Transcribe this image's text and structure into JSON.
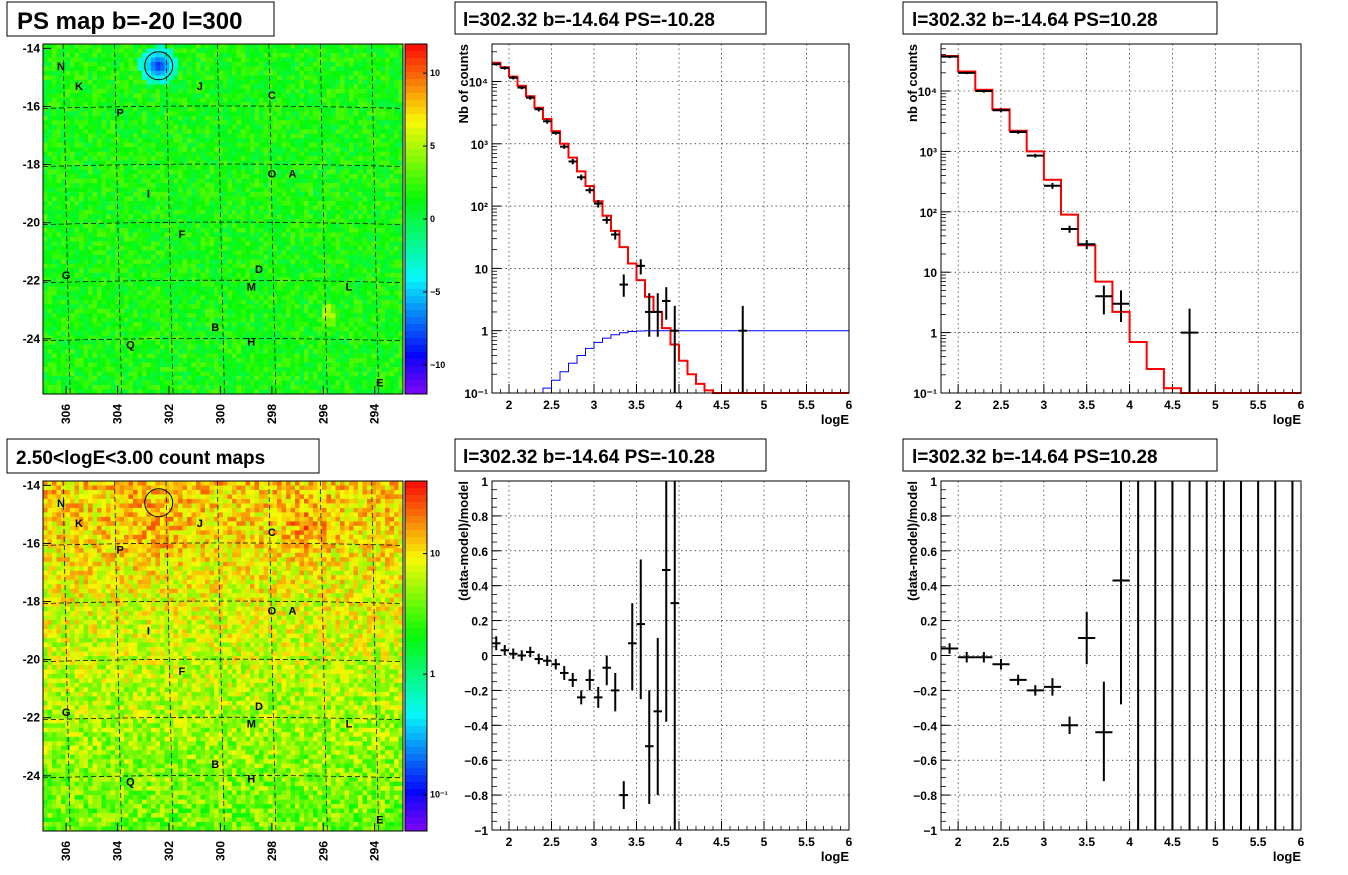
{
  "colors": {
    "model_line": "#ff0000",
    "data_marker": "#000000",
    "blue_line": "#0000ff"
  },
  "maps": [
    {
      "title": "PS map b=-20 l=300",
      "palette": "ps",
      "colorbar": {
        "scale": "linear",
        "range": [
          -12,
          12
        ],
        "ticks": [
          "10",
          "5",
          "0",
          "−5",
          "−10"
        ],
        "tick_values": [
          10,
          5,
          0,
          -5,
          -10
        ]
      },
      "xticks": [
        "306",
        "304",
        "302",
        "300",
        "298",
        "296",
        "294"
      ],
      "yticks": [
        "-14",
        "-16",
        "-18",
        "-20",
        "-22",
        "-24"
      ],
      "circle": "source-circle"
    },
    {
      "title": "2.50<logE<3.00 count maps",
      "palette": "counts",
      "colorbar": {
        "scale": "log",
        "range": [
          0.05,
          40
        ],
        "ticks": [
          "10",
          "1",
          "10⁻¹"
        ],
        "tick_values": [
          10,
          1,
          0.1
        ]
      },
      "xticks": [
        "306",
        "304",
        "302",
        "300",
        "298",
        "296",
        "294"
      ],
      "yticks": [
        "-14",
        "-16",
        "-18",
        "-20",
        "-22",
        "-24"
      ],
      "circle": "source-circle"
    }
  ],
  "map_labels": [
    {
      "t": "N",
      "l": 306.2,
      "b": -14.6
    },
    {
      "t": "K",
      "l": 305.5,
      "b": -15.3
    },
    {
      "t": "J",
      "l": 300.8,
      "b": -15.3
    },
    {
      "t": "C",
      "l": 298.0,
      "b": -15.6
    },
    {
      "t": "P",
      "l": 303.9,
      "b": -16.2
    },
    {
      "t": "O",
      "l": 298.0,
      "b": -18.3
    },
    {
      "t": "A",
      "l": 297.2,
      "b": -18.3
    },
    {
      "t": "I",
      "l": 302.8,
      "b": -19.0
    },
    {
      "t": "F",
      "l": 301.5,
      "b": -20.4
    },
    {
      "t": "G",
      "l": 306.0,
      "b": -21.8
    },
    {
      "t": "D",
      "l": 298.5,
      "b": -21.6
    },
    {
      "t": "M",
      "l": 298.8,
      "b": -22.2
    },
    {
      "t": "L",
      "l": 295.0,
      "b": -22.2
    },
    {
      "t": "B",
      "l": 300.2,
      "b": -23.6
    },
    {
      "t": "H",
      "l": 298.8,
      "b": -24.1
    },
    {
      "t": "Q",
      "l": 303.5,
      "b": -24.2
    },
    {
      "t": "E",
      "l": 293.8,
      "b": -25.5
    }
  ],
  "source_circle": {
    "l": 302.4,
    "b": -14.6
  },
  "charts": [
    {
      "id": "spectrum-neg",
      "title": "l=302.32 b=-14.64 PS=-10.28",
      "type": "line",
      "yscale": "log",
      "ylabel": "Nb of counts",
      "xlabel": "logE",
      "xlim": [
        1.8,
        6
      ],
      "ylim": [
        0.1,
        40000
      ],
      "xticks": [
        "2",
        "2.5",
        "3",
        "3.5",
        "4",
        "4.5",
        "5",
        "5.5",
        "6"
      ],
      "xtick_values": [
        2,
        2.5,
        3,
        3.5,
        4,
        4.5,
        5,
        5.5,
        6
      ],
      "yticks": [
        "10⁻¹",
        "1",
        "10",
        "10²",
        "10³",
        "10⁴"
      ],
      "ytick_values": [
        0.1,
        1,
        10,
        100,
        1000,
        10000
      ],
      "step_edges": [
        1.8,
        1.9,
        2.0,
        2.1,
        2.2,
        2.3,
        2.4,
        2.5,
        2.6,
        2.7,
        2.8,
        2.9,
        3.0,
        3.1,
        3.2,
        3.3,
        3.4,
        3.5,
        3.6,
        3.7,
        3.8,
        3.9,
        4.0,
        4.1,
        4.2,
        4.3,
        4.4,
        4.5,
        4.6,
        4.7,
        4.8,
        4.9,
        5.0,
        6.0
      ],
      "model": [
        20000,
        17000,
        12000,
        8500,
        5800,
        3800,
        2500,
        1600,
        1000,
        600,
        360,
        210,
        120,
        70,
        40,
        22,
        12,
        6.5,
        3.5,
        2.0,
        1.1,
        0.6,
        0.33,
        0.2,
        0.14,
        0.11,
        0.1,
        0.1,
        0.1,
        0.1,
        0.1,
        0.1,
        0.1
      ],
      "blue_edges": [
        1.8,
        2.4,
        2.5,
        2.6,
        2.7,
        2.8,
        2.9,
        3.0,
        3.1,
        3.2,
        3.3,
        3.4,
        3.5,
        3.6,
        3.7,
        6.0
      ],
      "blue": [
        0.1,
        0.12,
        0.16,
        0.22,
        0.3,
        0.4,
        0.52,
        0.65,
        0.76,
        0.86,
        0.93,
        0.97,
        0.99,
        1.0,
        1.0
      ],
      "points": [
        {
          "x": 1.85,
          "y": 19000,
          "lo": 18000,
          "hi": 20000
        },
        {
          "x": 1.95,
          "y": 16500,
          "lo": 15500,
          "hi": 17500
        },
        {
          "x": 2.05,
          "y": 11500,
          "lo": 10800,
          "hi": 12300
        },
        {
          "x": 2.15,
          "y": 8000,
          "lo": 7500,
          "hi": 8500
        },
        {
          "x": 2.25,
          "y": 5500,
          "lo": 5100,
          "hi": 5900
        },
        {
          "x": 2.35,
          "y": 3600,
          "lo": 3300,
          "hi": 3900
        },
        {
          "x": 2.45,
          "y": 2300,
          "lo": 2100,
          "hi": 2500
        },
        {
          "x": 2.55,
          "y": 1500,
          "lo": 1400,
          "hi": 1600
        },
        {
          "x": 2.65,
          "y": 900,
          "lo": 830,
          "hi": 970
        },
        {
          "x": 2.75,
          "y": 520,
          "lo": 470,
          "hi": 570
        },
        {
          "x": 2.85,
          "y": 290,
          "lo": 260,
          "hi": 320
        },
        {
          "x": 2.95,
          "y": 180,
          "lo": 160,
          "hi": 200
        },
        {
          "x": 3.05,
          "y": 110,
          "lo": 95,
          "hi": 125
        },
        {
          "x": 3.15,
          "y": 60,
          "lo": 52,
          "hi": 68
        },
        {
          "x": 3.25,
          "y": 35,
          "lo": 29,
          "hi": 41
        },
        {
          "x": 3.35,
          "y": 5.5,
          "lo": 3.5,
          "hi": 8
        },
        {
          "x": 3.55,
          "y": 11,
          "lo": 8,
          "hi": 14
        },
        {
          "x": 3.65,
          "y": 2,
          "lo": 0.8,
          "hi": 4
        },
        {
          "x": 3.75,
          "y": 2,
          "lo": 0.8,
          "hi": 4
        },
        {
          "x": 3.85,
          "y": 3,
          "lo": 1.5,
          "hi": 5
        },
        {
          "x": 3.95,
          "y": 1,
          "lo": 0.1,
          "hi": 2.5
        },
        {
          "x": 4.75,
          "y": 1,
          "lo": 0.1,
          "hi": 2.5
        }
      ],
      "xerr": 0.05
    },
    {
      "id": "spectrum-pos",
      "title": "l=302.32 b=-14.64 PS=10.28",
      "type": "line",
      "yscale": "log",
      "ylabel": "nb of counts",
      "xlabel": "logE",
      "xlim": [
        1.8,
        6
      ],
      "ylim": [
        0.1,
        60000
      ],
      "xticks": [
        "2",
        "2.5",
        "3",
        "3.5",
        "4",
        "4.5",
        "5",
        "5.5",
        "6"
      ],
      "xtick_values": [
        2,
        2.5,
        3,
        3.5,
        4,
        4.5,
        5,
        5.5,
        6
      ],
      "yticks": [
        "10⁻¹",
        "1",
        "10",
        "10²",
        "10³",
        "10⁴"
      ],
      "ytick_values": [
        0.1,
        1,
        10,
        100,
        1000,
        10000
      ],
      "step_edges": [
        1.8,
        2.0,
        2.2,
        2.4,
        2.6,
        2.8,
        3.0,
        3.2,
        3.4,
        3.6,
        3.8,
        4.0,
        4.2,
        4.4,
        4.6,
        4.8,
        6.0
      ],
      "model": [
        38000,
        21000,
        10500,
        5000,
        2200,
        1000,
        340,
        90,
        28,
        7,
        2.2,
        0.7,
        0.25,
        0.12,
        0.1,
        0.1
      ],
      "points": [
        {
          "x": 1.9,
          "y": 37000,
          "lo": 35000,
          "hi": 39000
        },
        {
          "x": 2.1,
          "y": 20000,
          "lo": 19000,
          "hi": 21000
        },
        {
          "x": 2.3,
          "y": 10000,
          "lo": 9400,
          "hi": 10600
        },
        {
          "x": 2.5,
          "y": 4800,
          "lo": 4500,
          "hi": 5100
        },
        {
          "x": 2.7,
          "y": 2100,
          "lo": 1950,
          "hi": 2250
        },
        {
          "x": 2.9,
          "y": 850,
          "lo": 790,
          "hi": 910
        },
        {
          "x": 3.1,
          "y": 270,
          "lo": 240,
          "hi": 300
        },
        {
          "x": 3.3,
          "y": 52,
          "lo": 45,
          "hi": 59
        },
        {
          "x": 3.5,
          "y": 29,
          "lo": 24,
          "hi": 34
        },
        {
          "x": 3.7,
          "y": 4,
          "lo": 2,
          "hi": 6
        },
        {
          "x": 3.9,
          "y": 3,
          "lo": 1.5,
          "hi": 5
        },
        {
          "x": 4.7,
          "y": 1,
          "lo": 0.1,
          "hi": 2.5
        }
      ],
      "xerr": 0.1
    },
    {
      "id": "residual-neg",
      "title": "l=302.32 b=-14.64 PS=-10.28",
      "type": "scatter",
      "yscale": "linear",
      "ylabel": "(data-model)/model",
      "xlabel": "logE",
      "xlim": [
        1.8,
        6
      ],
      "ylim": [
        -1,
        1
      ],
      "xticks": [
        "2",
        "2.5",
        "3",
        "3.5",
        "4",
        "4.5",
        "5",
        "5.5",
        "6"
      ],
      "xtick_values": [
        2,
        2.5,
        3,
        3.5,
        4,
        4.5,
        5,
        5.5,
        6
      ],
      "yticks": [
        "−1",
        "−0.8",
        "−0.6",
        "−0.4",
        "−0.2",
        "0",
        "0.2",
        "0.4",
        "0.6",
        "0.8",
        "1"
      ],
      "ytick_values": [
        -1,
        -0.8,
        -0.6,
        -0.4,
        -0.2,
        0,
        0.2,
        0.4,
        0.6,
        0.8,
        1
      ],
      "points": [
        {
          "x": 1.85,
          "y": 0.07,
          "lo": 0.03,
          "hi": 0.11
        },
        {
          "x": 1.95,
          "y": 0.03,
          "lo": 0.0,
          "hi": 0.06
        },
        {
          "x": 2.05,
          "y": 0.01,
          "lo": -0.02,
          "hi": 0.04
        },
        {
          "x": 2.15,
          "y": 0.0,
          "lo": -0.03,
          "hi": 0.03
        },
        {
          "x": 2.25,
          "y": 0.02,
          "lo": -0.01,
          "hi": 0.05
        },
        {
          "x": 2.35,
          "y": -0.02,
          "lo": -0.05,
          "hi": 0.01
        },
        {
          "x": 2.45,
          "y": -0.03,
          "lo": -0.06,
          "hi": 0.0
        },
        {
          "x": 2.55,
          "y": -0.05,
          "lo": -0.08,
          "hi": -0.02
        },
        {
          "x": 2.65,
          "y": -0.1,
          "lo": -0.14,
          "hi": -0.06
        },
        {
          "x": 2.75,
          "y": -0.14,
          "lo": -0.18,
          "hi": -0.1
        },
        {
          "x": 2.85,
          "y": -0.24,
          "lo": -0.28,
          "hi": -0.2
        },
        {
          "x": 2.95,
          "y": -0.14,
          "lo": -0.2,
          "hi": -0.08
        },
        {
          "x": 3.05,
          "y": -0.24,
          "lo": -0.3,
          "hi": -0.18
        },
        {
          "x": 3.15,
          "y": -0.07,
          "lo": -0.17,
          "hi": 0.0
        },
        {
          "x": 3.25,
          "y": -0.2,
          "lo": -0.32,
          "hi": -0.1
        },
        {
          "x": 3.35,
          "y": -0.8,
          "lo": -0.88,
          "hi": -0.72
        },
        {
          "x": 3.45,
          "y": 0.07,
          "lo": -0.2,
          "hi": 0.3
        },
        {
          "x": 3.55,
          "y": 0.18,
          "lo": -0.25,
          "hi": 0.55
        },
        {
          "x": 3.65,
          "y": -0.52,
          "lo": -0.85,
          "hi": -0.2
        },
        {
          "x": 3.75,
          "y": -0.32,
          "lo": -0.8,
          "hi": 0.1
        },
        {
          "x": 3.85,
          "y": 0.49,
          "lo": -0.38,
          "hi": 1
        },
        {
          "x": 3.95,
          "y": 0.3,
          "lo": -1,
          "hi": 1
        }
      ],
      "xerr": 0.05
    },
    {
      "id": "residual-pos",
      "title": "l=302.32 b=-14.64 PS=10.28",
      "type": "scatter",
      "yscale": "linear",
      "ylabel": "(data-model)/model",
      "xlabel": "logE",
      "xlim": [
        1.8,
        6
      ],
      "ylim": [
        -1,
        1
      ],
      "xticks": [
        "2",
        "2.5",
        "3",
        "3.5",
        "4",
        "4.5",
        "5",
        "5.5",
        "6"
      ],
      "xtick_values": [
        2,
        2.5,
        3,
        3.5,
        4,
        4.5,
        5,
        5.5,
        6
      ],
      "yticks": [
        "−1",
        "−0.8",
        "−0.6",
        "−0.4",
        "−0.2",
        "0",
        "0.2",
        "0.4",
        "0.6",
        "0.8",
        "1"
      ],
      "ytick_values": [
        -1,
        -0.8,
        -0.6,
        -0.4,
        -0.2,
        0,
        0.2,
        0.4,
        0.6,
        0.8,
        1
      ],
      "points": [
        {
          "x": 1.9,
          "y": 0.04,
          "lo": 0.01,
          "hi": 0.07
        },
        {
          "x": 2.1,
          "y": -0.01,
          "lo": -0.04,
          "hi": 0.02
        },
        {
          "x": 2.3,
          "y": -0.01,
          "lo": -0.04,
          "hi": 0.02
        },
        {
          "x": 2.5,
          "y": -0.05,
          "lo": -0.08,
          "hi": -0.02
        },
        {
          "x": 2.7,
          "y": -0.14,
          "lo": -0.17,
          "hi": -0.11
        },
        {
          "x": 2.9,
          "y": -0.2,
          "lo": -0.23,
          "hi": -0.17
        },
        {
          "x": 3.1,
          "y": -0.18,
          "lo": -0.23,
          "hi": -0.13
        },
        {
          "x": 3.3,
          "y": -0.4,
          "lo": -0.45,
          "hi": -0.35
        },
        {
          "x": 3.5,
          "y": 0.1,
          "lo": -0.05,
          "hi": 0.25
        },
        {
          "x": 3.7,
          "y": -0.44,
          "lo": -0.72,
          "hi": -0.15
        },
        {
          "x": 3.9,
          "y": 0.43,
          "lo": -0.28,
          "hi": 1
        },
        {
          "x": 4.1,
          "y": null,
          "lo": -1,
          "hi": 1
        },
        {
          "x": 4.3,
          "y": null,
          "lo": -1,
          "hi": 1
        },
        {
          "x": 4.5,
          "y": null,
          "lo": -1,
          "hi": 1
        },
        {
          "x": 4.7,
          "y": null,
          "lo": -1,
          "hi": 1
        },
        {
          "x": 4.9,
          "y": null,
          "lo": -1,
          "hi": 1
        },
        {
          "x": 5.1,
          "y": null,
          "lo": -1,
          "hi": 1
        },
        {
          "x": 5.3,
          "y": null,
          "lo": -1,
          "hi": 1
        },
        {
          "x": 5.5,
          "y": null,
          "lo": -1,
          "hi": 1
        },
        {
          "x": 5.7,
          "y": null,
          "lo": -1,
          "hi": 1
        },
        {
          "x": 5.9,
          "y": null,
          "lo": -1,
          "hi": 1
        }
      ],
      "xerr": 0.1
    }
  ]
}
